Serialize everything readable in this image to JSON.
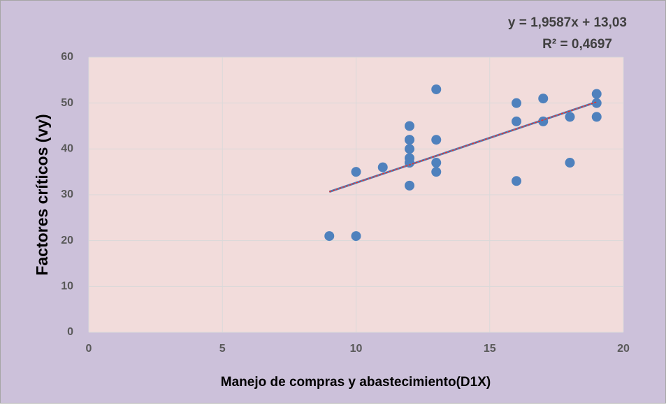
{
  "chart_data": {
    "type": "scatter",
    "x_label": "Manejo de compras y abastecimiento(D1X)",
    "y_label": "Factores críticos (vy)",
    "series": [
      {
        "color": "#4f81bd",
        "x": [
          9,
          10,
          10,
          11,
          12,
          12,
          12,
          12,
          12,
          12,
          12,
          12,
          13,
          13,
          13,
          13,
          16,
          16,
          16,
          17,
          17,
          18,
          18,
          19,
          19,
          19
        ],
        "values": [
          21,
          35,
          21,
          36,
          45,
          42,
          42,
          40,
          38,
          37,
          37,
          32,
          53,
          42,
          37,
          35,
          50,
          46,
          33,
          51,
          46,
          47,
          37,
          52,
          50,
          47
        ]
      }
    ],
    "trendline": {
      "slope": 1.9587,
      "intercept": 13.03,
      "xrange": [
        9,
        19
      ],
      "color": "#4f81bd",
      "dash_color": "#e3342f",
      "equation": "y = 1,9587x + 13,03",
      "r2": "R² = 0,4697"
    },
    "xlim": [
      0,
      20
    ],
    "xticks": [
      0,
      5,
      10,
      15,
      20
    ],
    "ylim": [
      0,
      60
    ],
    "yticks": [
      0,
      10,
      20,
      30,
      40,
      50,
      60
    ],
    "grid": true
  }
}
